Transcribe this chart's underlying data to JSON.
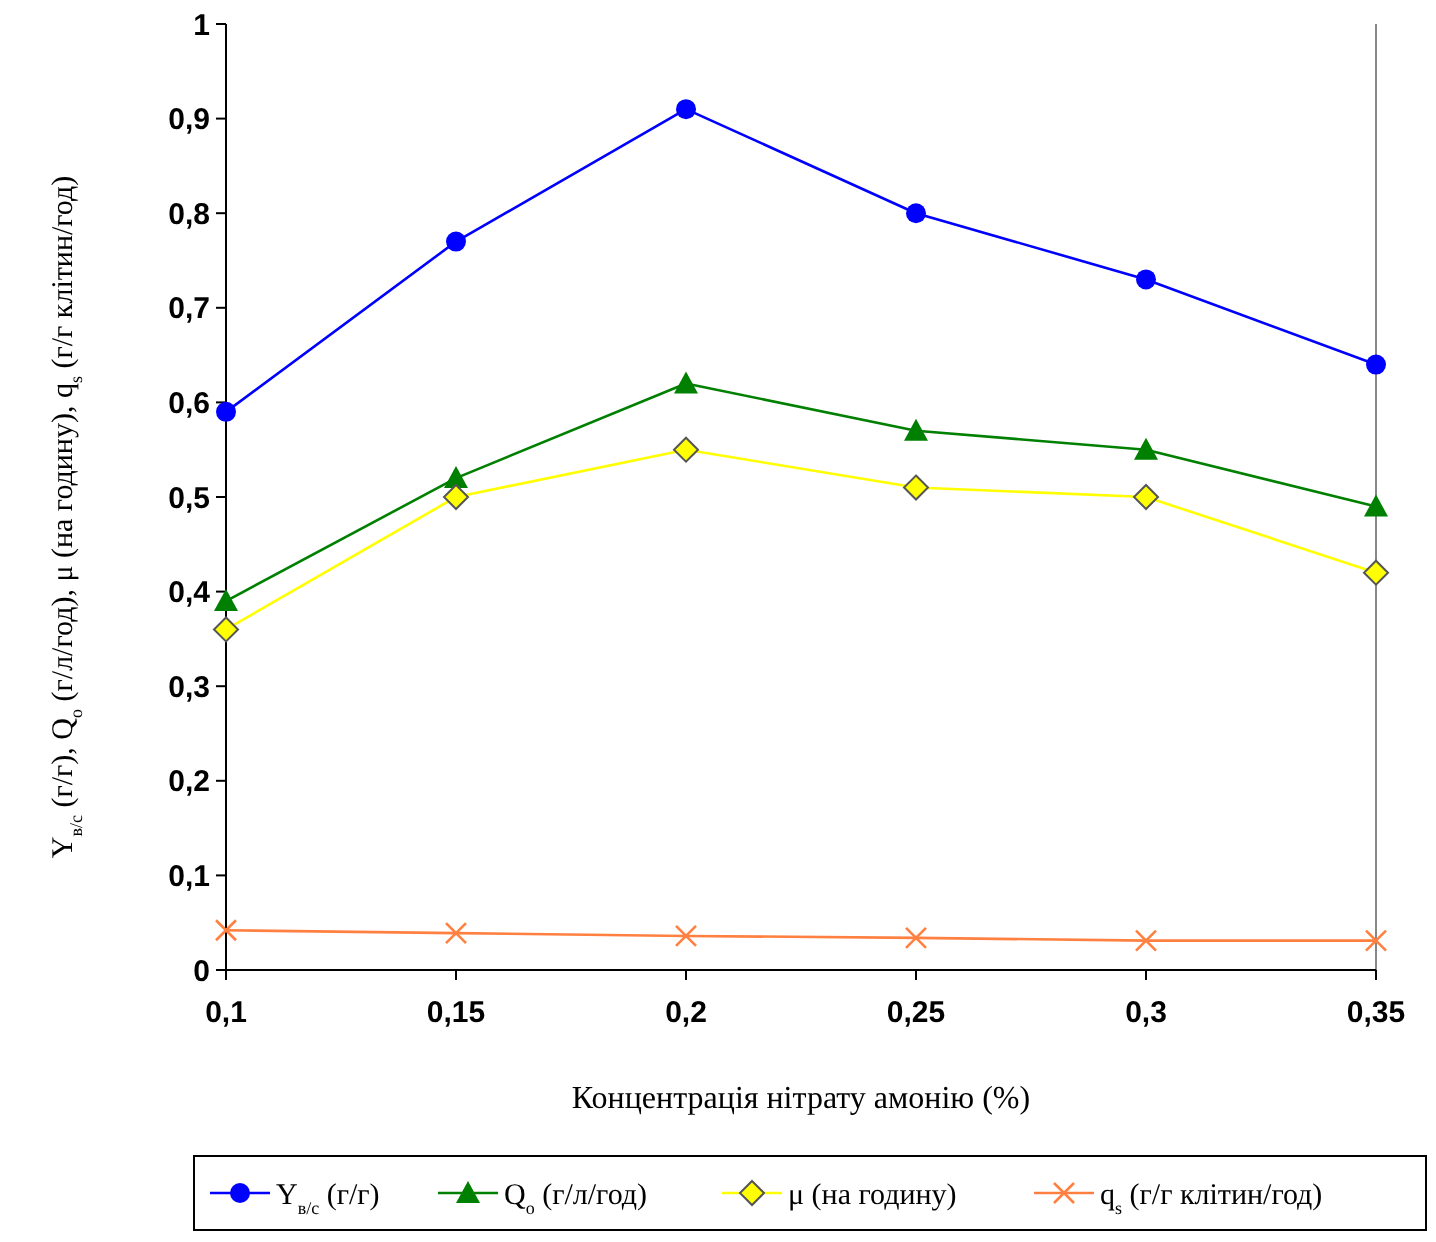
{
  "chart_data": {
    "type": "line",
    "xlabel": "Концентрація нітрату амонію (%)",
    "ylabel": "Y$_{в/с}$ (г/г), Q$_{о}$ (г/л/год), μ (на годину), q$_{s}$ (г/г клітин/год)",
    "x": [
      0.1,
      0.15,
      0.2,
      0.25,
      0.3,
      0.35
    ],
    "xlim": [
      0.1,
      0.35
    ],
    "xticks": [
      {
        "value": 0.1,
        "label": "0,1"
      },
      {
        "value": 0.15,
        "label": "0,15"
      },
      {
        "value": 0.2,
        "label": "0,2"
      },
      {
        "value": 0.25,
        "label": "0,25"
      },
      {
        "value": 0.3,
        "label": "0,3"
      },
      {
        "value": 0.35,
        "label": "0,35"
      }
    ],
    "ylim": [
      0,
      1
    ],
    "yticks": [
      0,
      {
        "value": 0.1,
        "label": "0,1"
      },
      {
        "value": 0.2,
        "label": "0,2"
      },
      {
        "value": 0.3,
        "label": "0,3"
      },
      {
        "value": 0.4,
        "label": "0,4"
      },
      {
        "value": 0.5,
        "label": "0,5"
      },
      {
        "value": 0.6,
        "label": "0,6"
      },
      {
        "value": 0.7,
        "label": "0,7"
      },
      {
        "value": 0.8,
        "label": "0,8"
      },
      {
        "value": 0.9,
        "label": "0,9"
      },
      1
    ],
    "grid": false,
    "legend": "bottom",
    "line_style": "solid",
    "series": [
      {
        "name": "Y$_{в/с}$ (г/г)",
        "color": "#0000ff",
        "marker": "circle",
        "values": [
          0.59,
          0.77,
          0.91,
          0.8,
          0.73,
          0.64
        ]
      },
      {
        "name": "Q$_{о}$ (г/л/год)",
        "color": "#008000",
        "marker": "triangle",
        "values": [
          0.39,
          0.52,
          0.62,
          0.57,
          0.55,
          0.49
        ]
      },
      {
        "name": "μ (на годину)",
        "color": "#ffff00",
        "marker": "diamond",
        "values": [
          0.36,
          0.5,
          0.55,
          0.51,
          0.5,
          0.42
        ]
      },
      {
        "name": "q$_{s}$ (г/г клітин/год)",
        "color": "#ff8040",
        "marker": "cross",
        "values": [
          0.042,
          0.039,
          0.036,
          0.034,
          0.031,
          0.031
        ]
      }
    ]
  }
}
